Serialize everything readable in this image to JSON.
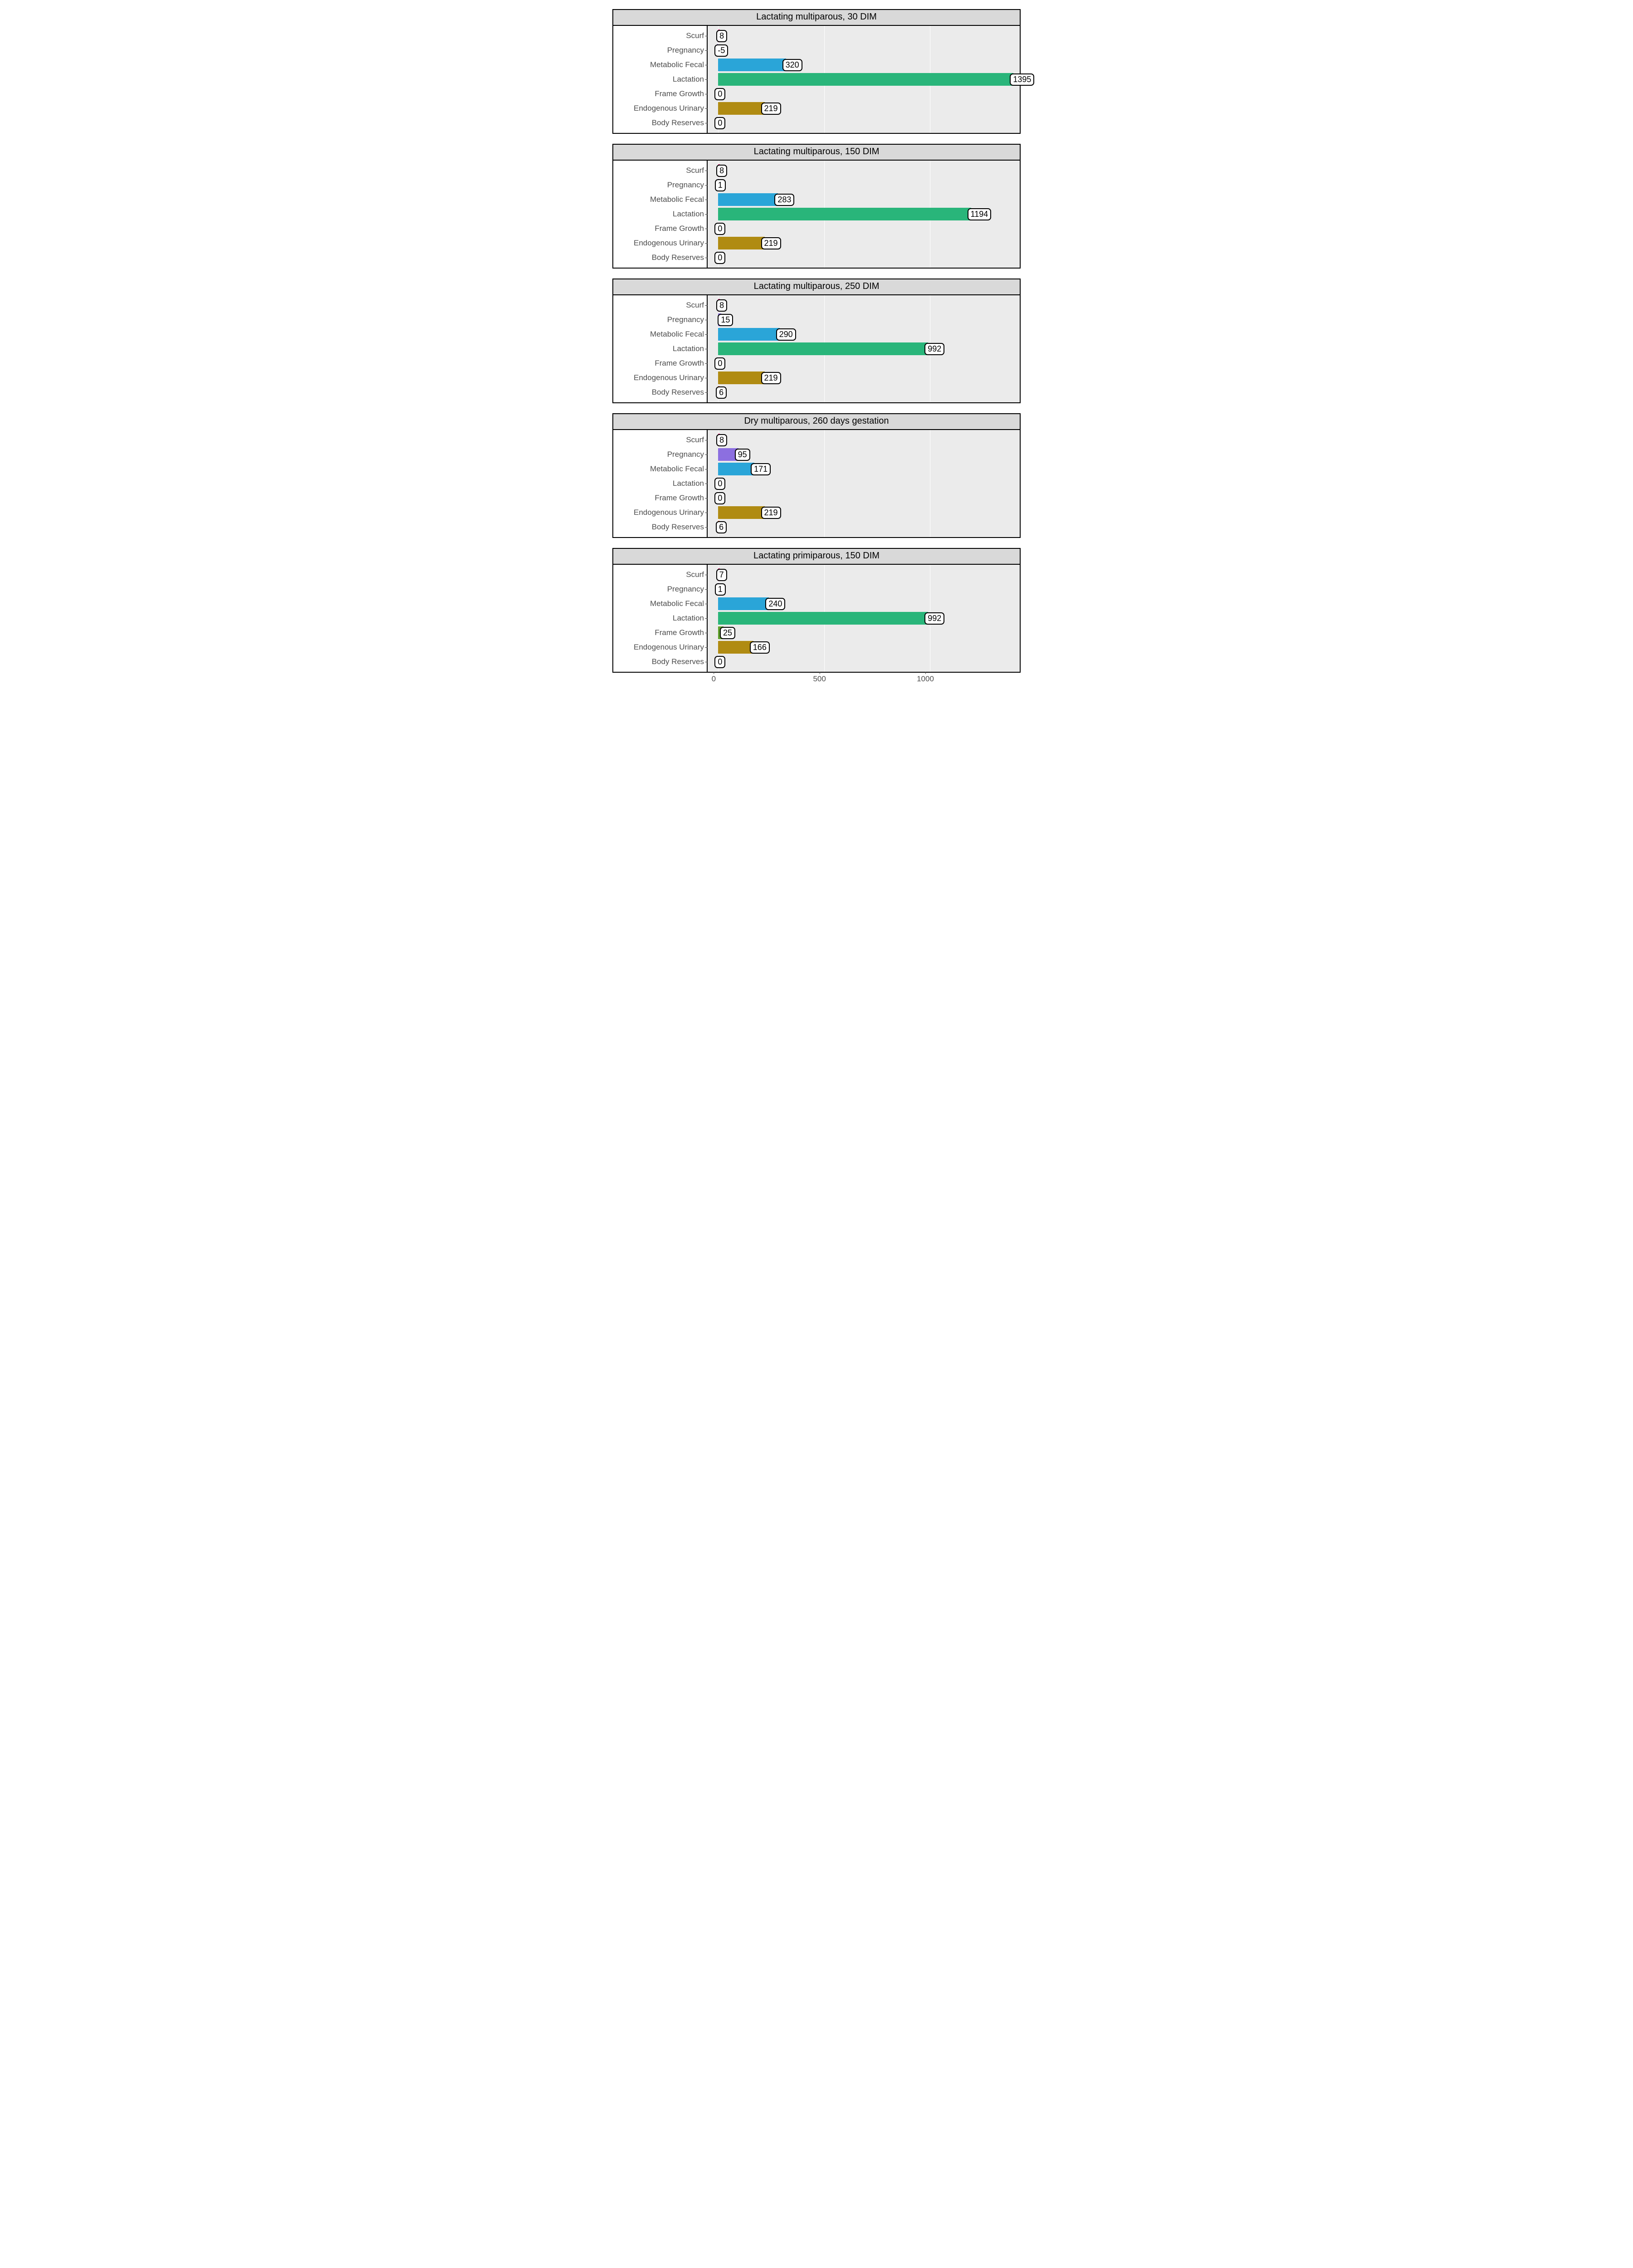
{
  "layout": {
    "panel_background": "#ebebeb",
    "strip_background": "#d9d9d9",
    "gridline_color": "#ffffff",
    "border_color": "#000000",
    "font_family": "Arial",
    "axis_text_fontsize": 17,
    "strip_text_fontsize": 20,
    "label_fontsize": 18,
    "label_border_radius": 7
  },
  "x_axis": {
    "min": -50,
    "max": 1450,
    "ticks": [
      0,
      500,
      1000
    ],
    "tick_labels": [
      "0",
      "500",
      "1000"
    ]
  },
  "categories": [
    "Scurf",
    "Pregnancy",
    "Metabolic Fecal",
    "Lactation",
    "Frame Growth",
    "Endogenous Urinary",
    "Body Reserves"
  ],
  "category_colors": {
    "Scurf": "#e83e8c",
    "Pregnancy": "#8c6fe0",
    "Metabolic Fecal": "#2aa5d8",
    "Lactation": "#29b57a",
    "Frame Growth": "#5fa02c",
    "Endogenous Urinary": "#b08b12",
    "Body Reserves": "#e06e3a"
  },
  "panels": [
    {
      "title": "Lactating multiparous, 30 DIM",
      "values": {
        "Scurf": 8,
        "Pregnancy": -5,
        "Metabolic Fecal": 320,
        "Lactation": 1395,
        "Frame Growth": 0,
        "Endogenous Urinary": 219,
        "Body Reserves": 0
      }
    },
    {
      "title": "Lactating multiparous, 150 DIM",
      "values": {
        "Scurf": 8,
        "Pregnancy": 1,
        "Metabolic Fecal": 283,
        "Lactation": 1194,
        "Frame Growth": 0,
        "Endogenous Urinary": 219,
        "Body Reserves": 0
      }
    },
    {
      "title": "Lactating multiparous, 250 DIM",
      "values": {
        "Scurf": 8,
        "Pregnancy": 15,
        "Metabolic Fecal": 290,
        "Lactation": 992,
        "Frame Growth": 0,
        "Endogenous Urinary": 219,
        "Body Reserves": 6
      }
    },
    {
      "title": "Dry multiparous, 260 days gestation",
      "values": {
        "Scurf": 8,
        "Pregnancy": 95,
        "Metabolic Fecal": 171,
        "Lactation": 0,
        "Frame Growth": 0,
        "Endogenous Urinary": 219,
        "Body Reserves": 6
      }
    },
    {
      "title": "Lactating primiparous, 150 DIM",
      "values": {
        "Scurf": 7,
        "Pregnancy": 1,
        "Metabolic Fecal": 240,
        "Lactation": 992,
        "Frame Growth": 25,
        "Endogenous Urinary": 166,
        "Body Reserves": 0
      }
    }
  ]
}
